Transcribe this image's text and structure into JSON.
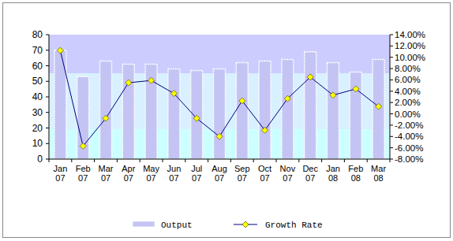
{
  "chart_data": {
    "type": "bar",
    "categories": [
      "Jan 07",
      "Feb 07",
      "Mar 07",
      "Apr 07",
      "May 07",
      "Jun 07",
      "Jul 07",
      "Aug 07",
      "Sep 07",
      "Oct 07",
      "Nov 07",
      "Dec 07",
      "Jan 08",
      "Feb 08",
      "Mar 08"
    ],
    "series": [
      {
        "name": "Output",
        "type": "bar",
        "color": "#c4c4f4",
        "values": [
          70,
          53,
          63,
          61,
          61,
          58,
          57,
          58,
          62,
          63,
          64,
          69,
          62,
          56,
          64
        ]
      },
      {
        "name": "Growth Rate",
        "type": "line",
        "axis": "y2",
        "color": "#000080",
        "marker": "diamond",
        "values": [
          11.2,
          -5.7,
          -0.8,
          5.5,
          5.9,
          3.6,
          -0.8,
          -4.0,
          2.3,
          -2.9,
          2.7,
          6.5,
          3.3,
          4.4,
          1.3
        ]
      }
    ],
    "ylim": [
      0,
      80
    ],
    "yticks": [
      0,
      10,
      20,
      30,
      40,
      50,
      60,
      70,
      80
    ],
    "y2lim": [
      -8,
      14
    ],
    "y2ticks": [
      {
        "value": -8,
        "label": "-8.00%"
      },
      {
        "value": -6,
        "label": "-6.00%"
      },
      {
        "value": -4,
        "label": "-4.00%"
      },
      {
        "value": -2,
        "label": "-2.00%"
      },
      {
        "value": 0,
        "label": "0.00%"
      },
      {
        "value": 2,
        "label": "2.00%"
      },
      {
        "value": 4,
        "label": "4.00%"
      },
      {
        "value": 6,
        "label": "6.00%"
      },
      {
        "value": 8,
        "label": "8.00%"
      },
      {
        "value": 10,
        "label": "10.00%"
      },
      {
        "value": 12,
        "label": "12.00%"
      },
      {
        "value": 14,
        "label": "14.00%"
      }
    ],
    "grid": false,
    "legend": "bottom"
  }
}
